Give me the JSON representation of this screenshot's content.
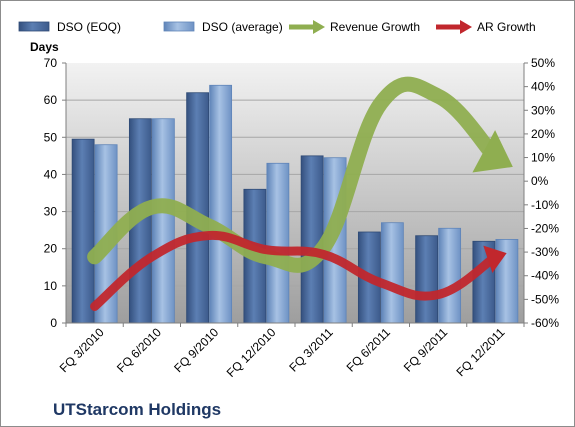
{
  "chart_data": {
    "type": "bar",
    "caption": "UTStarcom Holdings",
    "ylabel": "Days",
    "ylim": [
      0,
      70
    ],
    "y_ticks": [
      "0",
      "10",
      "20",
      "30",
      "40",
      "50",
      "60",
      "70"
    ],
    "y2lim": [
      -60,
      50
    ],
    "y2_ticks": [
      "-60%",
      "-50%",
      "-40%",
      "-30%",
      "-20%",
      "-10%",
      "0%",
      "10%",
      "20%",
      "30%",
      "40%",
      "50%"
    ],
    "categories": [
      "FQ 3/2010",
      "FQ 6/2010",
      "FQ 9/2010",
      "FQ 12/2010",
      "FQ 3/2011",
      "FQ 6/2011",
      "FQ 9/2011",
      "FQ 12/2011"
    ],
    "series": [
      {
        "name": "DSO (EOQ)",
        "kind": "bar",
        "axis": "left",
        "color": "#4a6b9c",
        "values": [
          49.5,
          55,
          62,
          36,
          45,
          24.5,
          23.5,
          22
        ]
      },
      {
        "name": "DSO (average)",
        "kind": "bar",
        "axis": "left",
        "color": "#7fa1cc",
        "values": [
          48,
          55,
          64,
          43,
          44.5,
          27,
          25.5,
          22.5
        ]
      },
      {
        "name": "Revenue Growth",
        "kind": "arrow-line",
        "axis": "right",
        "color": "#8fae50",
        "values": [
          -32,
          -11,
          -19,
          -32,
          -28,
          33,
          36,
          10
        ]
      },
      {
        "name": "AR Growth",
        "kind": "arrow-line",
        "axis": "right",
        "color": "#c1272d",
        "values": [
          -53,
          -32,
          -23,
          -29,
          -31,
          -43,
          -48,
          -32
        ]
      }
    ],
    "legend_position": "top",
    "grid": true,
    "plot_background": "#bfbfbf"
  }
}
